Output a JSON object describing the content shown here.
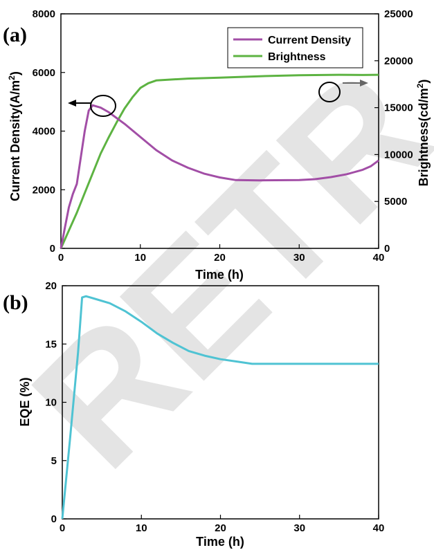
{
  "watermark": "RETR",
  "chart_data": [
    {
      "panel": "(a)",
      "type": "line",
      "xlabel": "Time (h)",
      "ylabel_main": "Current Density",
      "ylabel_unit_pre": "(A/m",
      "ylabel_unit_sup": "2",
      "ylabel_unit_post": ")",
      "y2label_main": "Brightness",
      "y2label_unit_pre": "(cd/m",
      "y2label_unit_sup": "2",
      "y2label_unit_post": ")",
      "xlim": [
        0,
        40
      ],
      "ylim": [
        0,
        8000
      ],
      "y2lim": [
        0,
        25000
      ],
      "x_ticks": [
        0,
        10,
        20,
        30,
        40
      ],
      "y_ticks": [
        0,
        2000,
        4000,
        6000,
        8000
      ],
      "y2_ticks": [
        0,
        5000,
        10000,
        15000,
        20000,
        25000
      ],
      "legend_position": "top-right",
      "series": [
        {
          "name": "Current Density",
          "axis": "left",
          "color": "#a24ea6",
          "x": [
            0,
            0.5,
            1,
            1.5,
            2,
            2.5,
            3,
            3.5,
            4,
            5,
            6,
            8,
            10,
            12,
            14,
            16,
            18,
            20,
            22,
            25,
            30,
            32,
            34,
            36,
            38,
            39,
            40
          ],
          "y": [
            0,
            700,
            1400,
            1850,
            2200,
            3100,
            4000,
            4700,
            4880,
            4800,
            4650,
            4250,
            3800,
            3350,
            3000,
            2750,
            2550,
            2420,
            2330,
            2320,
            2330,
            2360,
            2430,
            2530,
            2680,
            2800,
            3000
          ]
        },
        {
          "name": "Brightness",
          "axis": "right",
          "color": "#5db342",
          "x": [
            0,
            1,
            2,
            3,
            4,
            5,
            6,
            7,
            8,
            9,
            10,
            11,
            12,
            14,
            16,
            20,
            25,
            30,
            35,
            38,
            40
          ],
          "y": [
            0,
            1900,
            3800,
            5900,
            8000,
            10100,
            11800,
            13400,
            14900,
            16100,
            17100,
            17600,
            17900,
            18000,
            18100,
            18200,
            18350,
            18450,
            18500,
            18480,
            18500
          ]
        }
      ]
    },
    {
      "panel": "(b)",
      "type": "line",
      "xlabel": "Time (h)",
      "ylabel": "EQE (%)",
      "xlim": [
        0,
        40
      ],
      "ylim": [
        0,
        20
      ],
      "x_ticks": [
        0,
        10,
        20,
        30,
        40
      ],
      "y_ticks": [
        0,
        5,
        10,
        15,
        20
      ],
      "series": [
        {
          "color": "#4fc3d3",
          "x": [
            0,
            1,
            2,
            2.5,
            3,
            4,
            6,
            8,
            10,
            12,
            14,
            16,
            18,
            20,
            22,
            24,
            26,
            30,
            35,
            40
          ],
          "y": [
            0,
            7,
            14.3,
            19,
            19.1,
            18.9,
            18.5,
            17.8,
            16.9,
            15.9,
            15.1,
            14.4,
            14.0,
            13.7,
            13.5,
            13.3,
            13.3,
            13.3,
            13.3,
            13.3
          ]
        }
      ]
    }
  ]
}
